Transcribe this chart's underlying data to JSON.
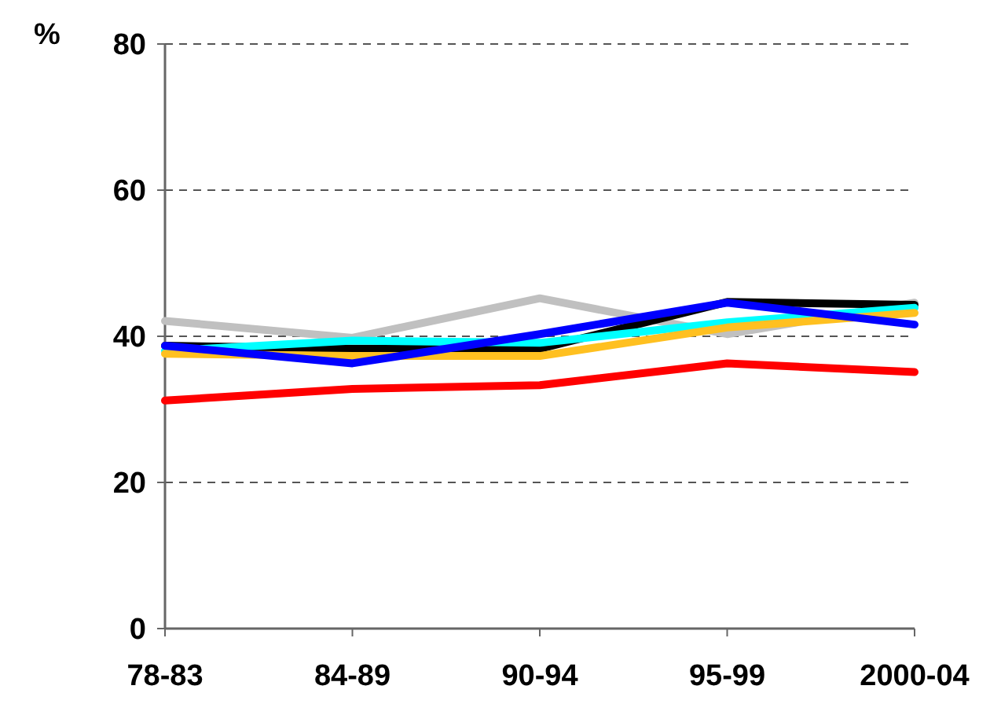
{
  "chart_data": {
    "type": "line",
    "ylabel": "%",
    "categories": [
      "78-83",
      "84-89",
      "90-94",
      "95-99",
      "2000-04"
    ],
    "ylim": [
      0,
      80
    ],
    "yticks": [
      0,
      20,
      40,
      60,
      80
    ],
    "grid": "y",
    "line_style": "solid",
    "series": [
      {
        "color": "#c0c0c0",
        "values": [
          42.1,
          39.8,
          45.2,
          40.3,
          44.6
        ]
      },
      {
        "color": "#000000",
        "values": [
          38.7,
          38.3,
          38.3,
          44.7,
          44.3
        ]
      },
      {
        "color": "#00ffff",
        "values": [
          38.0,
          39.4,
          39.1,
          41.9,
          43.9
        ]
      },
      {
        "color": "#ffc020",
        "values": [
          37.6,
          37.3,
          37.3,
          41.2,
          43.2
        ]
      },
      {
        "color": "#0000ff",
        "values": [
          38.7,
          36.3,
          40.3,
          44.6,
          41.6
        ]
      },
      {
        "color": "#ff0000",
        "values": [
          31.2,
          32.8,
          33.3,
          36.3,
          35.1
        ]
      }
    ]
  }
}
